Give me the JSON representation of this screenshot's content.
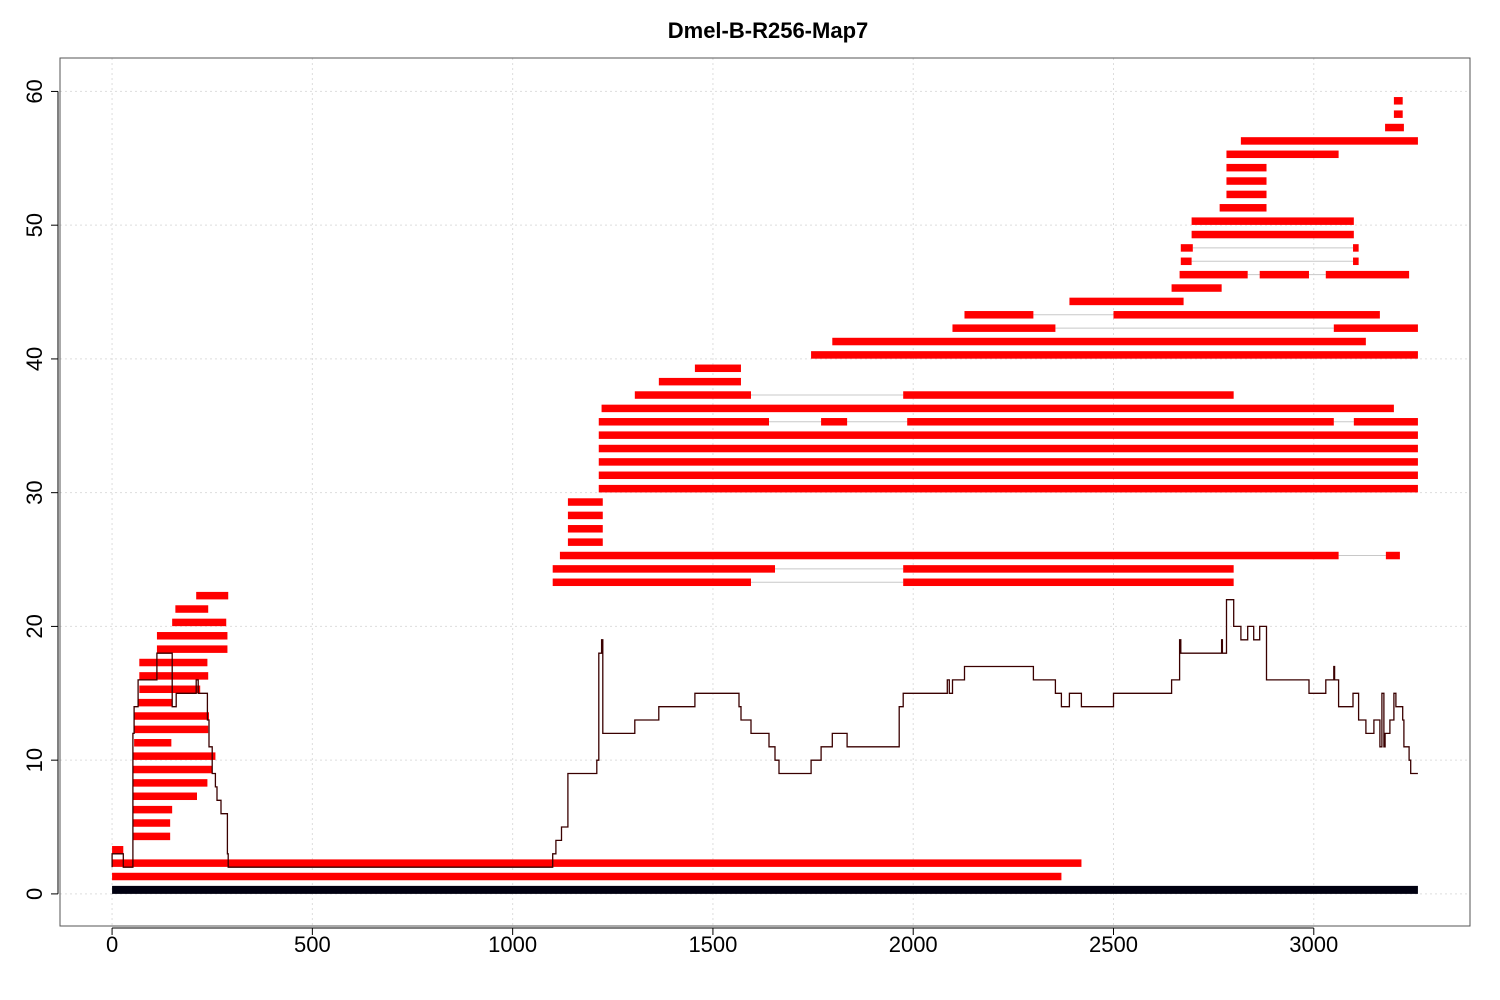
{
  "chart_data": {
    "type": "line",
    "title": "Dmel-B-R256-Map7",
    "xlabel": "",
    "ylabel": "",
    "xlim": [
      -130,
      3390
    ],
    "ylim": [
      -2.4,
      62.5
    ],
    "x_ticks": [
      0,
      500,
      1000,
      1500,
      2000,
      2500,
      3000
    ],
    "y_ticks": [
      0,
      10,
      20,
      30,
      40,
      50,
      60
    ],
    "grid": true,
    "colors": {
      "alignment": "#ff0000",
      "gap_line": "#c8c8c8",
      "coverage": "#3a0000",
      "reference": "#000010",
      "grid": "#dddddd"
    },
    "reference_segment": {
      "x_start": 0,
      "x_end": 3260,
      "y": 0.3
    },
    "alignments": [
      {
        "y": 1.3,
        "blocks": [
          [
            0,
            2370
          ]
        ]
      },
      {
        "y": 2.3,
        "blocks": [
          [
            0,
            2420
          ]
        ]
      },
      {
        "y": 3.3,
        "blocks": [
          [
            0,
            28
          ]
        ]
      },
      {
        "y": 4.3,
        "blocks": [
          [
            52,
            145
          ]
        ]
      },
      {
        "y": 5.3,
        "blocks": [
          [
            52,
            145
          ]
        ]
      },
      {
        "y": 6.3,
        "blocks": [
          [
            52,
            150
          ]
        ]
      },
      {
        "y": 7.3,
        "blocks": [
          [
            52,
            212
          ]
        ]
      },
      {
        "y": 8.3,
        "blocks": [
          [
            52,
            238
          ]
        ]
      },
      {
        "y": 9.3,
        "blocks": [
          [
            52,
            250
          ]
        ]
      },
      {
        "y": 10.3,
        "blocks": [
          [
            52,
            258
          ]
        ]
      },
      {
        "y": 11.3,
        "blocks": [
          [
            55,
            148
          ]
        ]
      },
      {
        "y": 12.3,
        "blocks": [
          [
            55,
            240
          ]
        ]
      },
      {
        "y": 13.3,
        "blocks": [
          [
            55,
            242
          ]
        ]
      },
      {
        "y": 14.3,
        "blocks": [
          [
            65,
            150
          ]
        ]
      },
      {
        "y": 15.3,
        "blocks": [
          [
            68,
            220
          ]
        ]
      },
      {
        "y": 16.3,
        "blocks": [
          [
            68,
            240
          ]
        ]
      },
      {
        "y": 17.3,
        "blocks": [
          [
            68,
            238
          ]
        ]
      },
      {
        "y": 18.3,
        "blocks": [
          [
            112,
            288
          ]
        ]
      },
      {
        "y": 19.3,
        "blocks": [
          [
            112,
            288
          ]
        ]
      },
      {
        "y": 20.3,
        "blocks": [
          [
            150,
            285
          ]
        ]
      },
      {
        "y": 21.3,
        "blocks": [
          [
            158,
            240
          ]
        ]
      },
      {
        "y": 22.3,
        "blocks": [
          [
            210,
            290
          ]
        ]
      },
      {
        "y": 23.3,
        "blocks": [
          [
            1100,
            1595
          ],
          [
            1975,
            2800
          ]
        ]
      },
      {
        "y": 24.3,
        "blocks": [
          [
            1100,
            1655
          ],
          [
            1975,
            2800
          ]
        ]
      },
      {
        "y": 25.3,
        "blocks": [
          [
            1118,
            3062
          ],
          [
            3180,
            3215
          ]
        ]
      },
      {
        "y": 26.3,
        "blocks": [
          [
            1138,
            1225
          ]
        ]
      },
      {
        "y": 27.3,
        "blocks": [
          [
            1138,
            1225
          ]
        ]
      },
      {
        "y": 28.3,
        "blocks": [
          [
            1138,
            1225
          ]
        ]
      },
      {
        "y": 29.3,
        "blocks": [
          [
            1138,
            1225
          ]
        ]
      },
      {
        "y": 30.3,
        "blocks": [
          [
            1215,
            3260
          ]
        ]
      },
      {
        "y": 31.3,
        "blocks": [
          [
            1215,
            3260
          ]
        ]
      },
      {
        "y": 32.3,
        "blocks": [
          [
            1215,
            3260
          ]
        ]
      },
      {
        "y": 33.3,
        "blocks": [
          [
            1215,
            3260
          ]
        ]
      },
      {
        "y": 34.3,
        "blocks": [
          [
            1215,
            3260
          ]
        ]
      },
      {
        "y": 35.3,
        "blocks": [
          [
            1215,
            1640
          ],
          [
            1770,
            1835
          ],
          [
            1985,
            3050
          ],
          [
            3100,
            3260
          ]
        ]
      },
      {
        "y": 36.3,
        "blocks": [
          [
            1222,
            3200
          ]
        ]
      },
      {
        "y": 37.3,
        "blocks": [
          [
            1305,
            1595
          ],
          [
            1975,
            2800
          ]
        ]
      },
      {
        "y": 38.3,
        "blocks": [
          [
            1365,
            1570
          ]
        ]
      },
      {
        "y": 39.3,
        "blocks": [
          [
            1455,
            1570
          ]
        ]
      },
      {
        "y": 40.3,
        "blocks": [
          [
            1745,
            3260
          ]
        ]
      },
      {
        "y": 41.3,
        "blocks": [
          [
            1798,
            3130
          ]
        ]
      },
      {
        "y": 42.3,
        "blocks": [
          [
            2098,
            2355
          ],
          [
            3050,
            3260
          ]
        ]
      },
      {
        "y": 43.3,
        "blocks": [
          [
            2128,
            2300
          ],
          [
            2500,
            3165
          ]
        ]
      },
      {
        "y": 44.3,
        "blocks": [
          [
            2390,
            2675
          ]
        ]
      },
      {
        "y": 45.3,
        "blocks": [
          [
            2645,
            2770
          ]
        ]
      },
      {
        "y": 46.3,
        "blocks": [
          [
            2665,
            2835
          ],
          [
            2865,
            2988
          ],
          [
            3030,
            3238
          ]
        ]
      },
      {
        "y": 47.3,
        "blocks": [
          [
            2668,
            2695
          ],
          [
            3098,
            3112
          ]
        ]
      },
      {
        "y": 48.3,
        "blocks": [
          [
            2668,
            2698
          ],
          [
            3098,
            3112
          ]
        ]
      },
      {
        "y": 49.3,
        "blocks": [
          [
            2695,
            3100
          ]
        ]
      },
      {
        "y": 50.3,
        "blocks": [
          [
            2695,
            3100
          ]
        ]
      },
      {
        "y": 51.3,
        "blocks": [
          [
            2765,
            2882
          ]
        ]
      },
      {
        "y": 52.3,
        "blocks": [
          [
            2782,
            2882
          ]
        ]
      },
      {
        "y": 53.3,
        "blocks": [
          [
            2782,
            2882
          ]
        ]
      },
      {
        "y": 54.3,
        "blocks": [
          [
            2782,
            2882
          ]
        ]
      },
      {
        "y": 55.3,
        "blocks": [
          [
            2782,
            3062
          ]
        ]
      },
      {
        "y": 56.3,
        "blocks": [
          [
            2818,
            3260
          ]
        ]
      },
      {
        "y": 57.3,
        "blocks": [
          [
            3178,
            3225
          ]
        ]
      },
      {
        "y": 58.3,
        "blocks": [
          [
            3200,
            3222
          ]
        ]
      },
      {
        "y": 59.3,
        "blocks": [
          [
            3200,
            3222
          ]
        ]
      }
    ],
    "coverage": [
      [
        0,
        2
      ],
      [
        0,
        3
      ],
      [
        28,
        3
      ],
      [
        28,
        2
      ],
      [
        52,
        2
      ],
      [
        52,
        12
      ],
      [
        55,
        12
      ],
      [
        55,
        14
      ],
      [
        65,
        14
      ],
      [
        65,
        16
      ],
      [
        112,
        16
      ],
      [
        112,
        18
      ],
      [
        150,
        18
      ],
      [
        150,
        14
      ],
      [
        160,
        14
      ],
      [
        160,
        15
      ],
      [
        210,
        15
      ],
      [
        210,
        16
      ],
      [
        215,
        16
      ],
      [
        215,
        15
      ],
      [
        238,
        15
      ],
      [
        238,
        13
      ],
      [
        242,
        13
      ],
      [
        242,
        11
      ],
      [
        250,
        11
      ],
      [
        250,
        9
      ],
      [
        258,
        9
      ],
      [
        258,
        8
      ],
      [
        262,
        8
      ],
      [
        262,
        7
      ],
      [
        272,
        7
      ],
      [
        272,
        6
      ],
      [
        288,
        6
      ],
      [
        288,
        3
      ],
      [
        290,
        3
      ],
      [
        290,
        2
      ],
      [
        1100,
        2
      ],
      [
        1100,
        3
      ],
      [
        1108,
        3
      ],
      [
        1108,
        4
      ],
      [
        1122,
        4
      ],
      [
        1122,
        5
      ],
      [
        1138,
        5
      ],
      [
        1138,
        9
      ],
      [
        1210,
        9
      ],
      [
        1210,
        10
      ],
      [
        1215,
        10
      ],
      [
        1215,
        18
      ],
      [
        1222,
        18
      ],
      [
        1222,
        19
      ],
      [
        1225,
        19
      ],
      [
        1225,
        12
      ],
      [
        1305,
        12
      ],
      [
        1305,
        13
      ],
      [
        1365,
        13
      ],
      [
        1365,
        14
      ],
      [
        1455,
        14
      ],
      [
        1455,
        15
      ],
      [
        1565,
        15
      ],
      [
        1565,
        14
      ],
      [
        1570,
        14
      ],
      [
        1570,
        13
      ],
      [
        1595,
        13
      ],
      [
        1595,
        12
      ],
      [
        1640,
        12
      ],
      [
        1640,
        11
      ],
      [
        1655,
        11
      ],
      [
        1655,
        10
      ],
      [
        1665,
        10
      ],
      [
        1665,
        9
      ],
      [
        1745,
        9
      ],
      [
        1745,
        10
      ],
      [
        1770,
        10
      ],
      [
        1770,
        11
      ],
      [
        1798,
        11
      ],
      [
        1798,
        12
      ],
      [
        1835,
        12
      ],
      [
        1835,
        11
      ],
      [
        1965,
        11
      ],
      [
        1965,
        14
      ],
      [
        1975,
        14
      ],
      [
        1975,
        15
      ],
      [
        2085,
        15
      ],
      [
        2085,
        16
      ],
      [
        2090,
        16
      ],
      [
        2090,
        15
      ],
      [
        2098,
        15
      ],
      [
        2098,
        16
      ],
      [
        2128,
        16
      ],
      [
        2128,
        17
      ],
      [
        2300,
        17
      ],
      [
        2300,
        16
      ],
      [
        2355,
        16
      ],
      [
        2355,
        15
      ],
      [
        2370,
        15
      ],
      [
        2370,
        14
      ],
      [
        2390,
        14
      ],
      [
        2390,
        15
      ],
      [
        2420,
        15
      ],
      [
        2420,
        14
      ],
      [
        2500,
        14
      ],
      [
        2500,
        15
      ],
      [
        2645,
        15
      ],
      [
        2645,
        16
      ],
      [
        2665,
        16
      ],
      [
        2665,
        19
      ],
      [
        2668,
        19
      ],
      [
        2668,
        18
      ],
      [
        2770,
        18
      ],
      [
        2770,
        19
      ],
      [
        2772,
        19
      ],
      [
        2772,
        18
      ],
      [
        2782,
        18
      ],
      [
        2782,
        22
      ],
      [
        2800,
        22
      ],
      [
        2800,
        20
      ],
      [
        2818,
        20
      ],
      [
        2818,
        19
      ],
      [
        2835,
        19
      ],
      [
        2835,
        20
      ],
      [
        2850,
        20
      ],
      [
        2850,
        19
      ],
      [
        2865,
        19
      ],
      [
        2865,
        20
      ],
      [
        2882,
        20
      ],
      [
        2882,
        16
      ],
      [
        2988,
        16
      ],
      [
        2988,
        15
      ],
      [
        3030,
        15
      ],
      [
        3030,
        16
      ],
      [
        3050,
        16
      ],
      [
        3050,
        17
      ],
      [
        3052,
        17
      ],
      [
        3052,
        16
      ],
      [
        3062,
        16
      ],
      [
        3062,
        14
      ],
      [
        3098,
        14
      ],
      [
        3098,
        15
      ],
      [
        3112,
        15
      ],
      [
        3112,
        13
      ],
      [
        3130,
        13
      ],
      [
        3130,
        12
      ],
      [
        3150,
        12
      ],
      [
        3150,
        13
      ],
      [
        3165,
        13
      ],
      [
        3165,
        11
      ],
      [
        3170,
        11
      ],
      [
        3170,
        15
      ],
      [
        3175,
        15
      ],
      [
        3175,
        11
      ],
      [
        3178,
        11
      ],
      [
        3178,
        12
      ],
      [
        3190,
        12
      ],
      [
        3190,
        13
      ],
      [
        3200,
        13
      ],
      [
        3200,
        15
      ],
      [
        3205,
        15
      ],
      [
        3205,
        14
      ],
      [
        3222,
        14
      ],
      [
        3222,
        13
      ],
      [
        3225,
        13
      ],
      [
        3225,
        11
      ],
      [
        3238,
        11
      ],
      [
        3238,
        10
      ],
      [
        3242,
        10
      ],
      [
        3242,
        9
      ],
      [
        3260,
        9
      ]
    ]
  }
}
